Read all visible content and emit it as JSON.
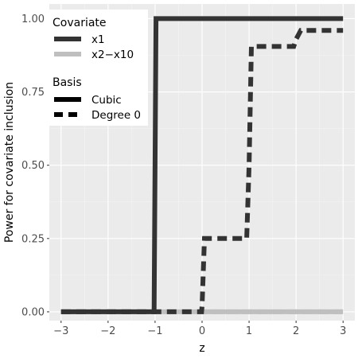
{
  "chart_data": {
    "type": "line",
    "title": "",
    "xlabel": "z",
    "ylabel": "Power for covariate inclusion",
    "xlim": [
      -3.25,
      3.25
    ],
    "ylim": [
      -0.03,
      1.05
    ],
    "x_ticks": [
      -3,
      -2,
      -1,
      0,
      1,
      2,
      3
    ],
    "x_tick_labels": [
      "−3",
      "−2",
      "−1",
      "0",
      "1",
      "2",
      "3"
    ],
    "y_ticks": [
      0,
      0.25,
      0.5,
      0.75,
      1
    ],
    "y_tick_labels": [
      "0.00",
      "0.25",
      "0.50",
      "0.75",
      "1.00"
    ],
    "grid": true,
    "legend": [
      {
        "title": "Covariate",
        "entries": [
          {
            "label": "x1",
            "color": "#333333",
            "dash": "solid"
          },
          {
            "label": "x2−x10",
            "color": "#bfbfbf",
            "dash": "solid"
          }
        ]
      },
      {
        "title": "Basis",
        "entries": [
          {
            "label": "Cubic",
            "color": "#000000",
            "dash": "solid"
          },
          {
            "label": "Degree 0",
            "color": "#000000",
            "dash": "dashed"
          }
        ]
      }
    ],
    "legend_position": "top-left",
    "series": [
      {
        "covariate": "x2−x10",
        "basis": "Degree 0",
        "color": "#bfbfbf",
        "dash": "dashed",
        "x": [
          -3,
          3
        ],
        "y": [
          0,
          0
        ]
      },
      {
        "covariate": "x2−x10",
        "basis": "Cubic",
        "color": "#bfbfbf",
        "dash": "solid",
        "x": [
          -3,
          3
        ],
        "y": [
          0,
          0
        ]
      },
      {
        "covariate": "x1",
        "basis": "Degree 0",
        "color": "#333333",
        "dash": "dashed",
        "x": [
          -3,
          -0.01,
          0.0,
          0.05,
          0.95,
          1.0,
          1.05,
          1.95,
          2.0,
          2.1,
          3
        ],
        "y": [
          0,
          0,
          0.02,
          0.25,
          0.25,
          0.5,
          0.905,
          0.905,
          0.93,
          0.96,
          0.96
        ]
      },
      {
        "covariate": "x1",
        "basis": "Cubic",
        "color": "#333333",
        "dash": "solid",
        "x": [
          -3,
          -1.02,
          -0.98,
          3
        ],
        "y": [
          0,
          0,
          1,
          1
        ]
      }
    ]
  }
}
